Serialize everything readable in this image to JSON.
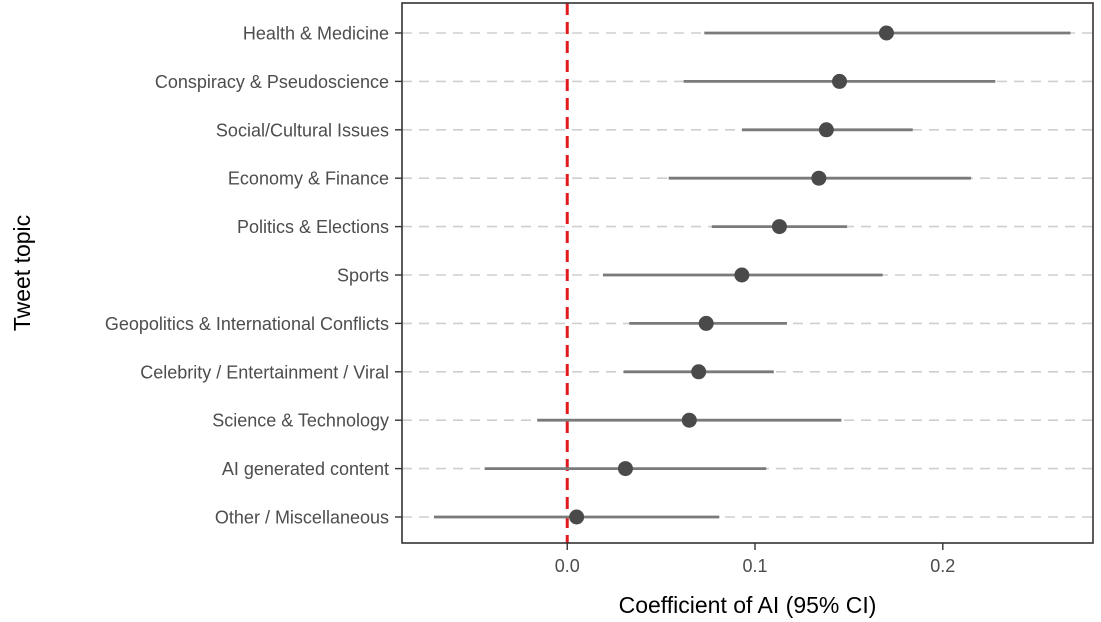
{
  "chart_data": {
    "type": "scatter",
    "subtype": "dot-and-whisker",
    "title": "",
    "xlabel": "Coefficient of AI (95% CI)",
    "ylabel": "Tweet topic",
    "xlim": [
      -0.088,
      0.28
    ],
    "xticks": [
      0.0,
      0.1,
      0.2
    ],
    "xtick_labels": [
      "0.0",
      "0.1",
      "0.2"
    ],
    "grid": "horizontal dashed at each category",
    "reference_line": {
      "x": 0,
      "color": "#e31a1c",
      "style": "dashed"
    },
    "point_color": "#4a4a4a",
    "ci_color": "#7a7a7a",
    "series": [
      {
        "category": "Health & Medicine",
        "estimate": 0.17,
        "ci_low": 0.073,
        "ci_high": 0.268
      },
      {
        "category": "Conspiracy & Pseudoscience",
        "estimate": 0.145,
        "ci_low": 0.062,
        "ci_high": 0.228
      },
      {
        "category": "Social/Cultural Issues",
        "estimate": 0.138,
        "ci_low": 0.093,
        "ci_high": 0.184
      },
      {
        "category": "Economy & Finance",
        "estimate": 0.134,
        "ci_low": 0.054,
        "ci_high": 0.215
      },
      {
        "category": "Politics & Elections",
        "estimate": 0.113,
        "ci_low": 0.077,
        "ci_high": 0.149
      },
      {
        "category": "Sports",
        "estimate": 0.093,
        "ci_low": 0.019,
        "ci_high": 0.168
      },
      {
        "category": "Geopolitics & International Conflicts",
        "estimate": 0.074,
        "ci_low": 0.033,
        "ci_high": 0.117
      },
      {
        "category": "Celebrity / Entertainment / Viral",
        "estimate": 0.07,
        "ci_low": 0.03,
        "ci_high": 0.11
      },
      {
        "category": "Science & Technology",
        "estimate": 0.065,
        "ci_low": -0.016,
        "ci_high": 0.146
      },
      {
        "category": "AI generated content",
        "estimate": 0.031,
        "ci_low": -0.044,
        "ci_high": 0.106
      },
      {
        "category": "Other / Miscellaneous",
        "estimate": 0.005,
        "ci_low": -0.071,
        "ci_high": 0.081
      }
    ]
  }
}
